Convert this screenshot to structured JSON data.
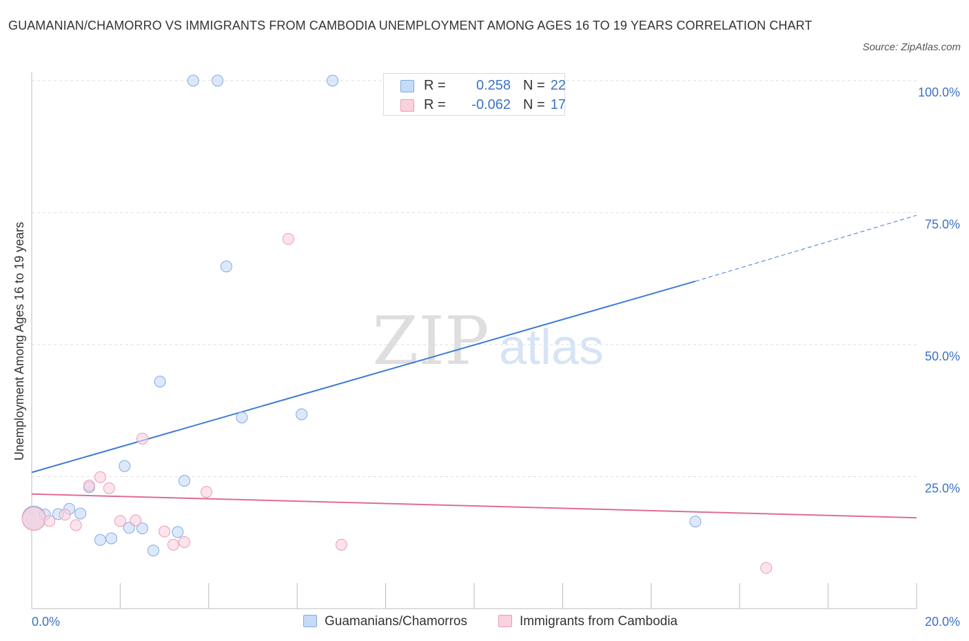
{
  "title": "GUAMANIAN/CHAMORRO VS IMMIGRANTS FROM CAMBODIA UNEMPLOYMENT AMONG AGES 16 TO 19 YEARS CORRELATION CHART",
  "source": "Source: ZipAtlas.com",
  "watermark": {
    "zip": "ZIP",
    "atlas": "atlas"
  },
  "legend_top": {
    "r_label": "R =",
    "n_label": "N =",
    "series1": {
      "r": "0.258",
      "n": "22"
    },
    "series2": {
      "r": "-0.062",
      "n": "17"
    }
  },
  "colors": {
    "series1_fill": "#c6dbf7",
    "series1_stroke": "#7fa9e6",
    "series1_line": "#3a7bd5",
    "series2_fill": "#f9d2de",
    "series2_stroke": "#ee9ab4",
    "series2_line": "#e06a95",
    "axis_text": "#3a72c8",
    "grid": "#dddddd"
  },
  "chart_data": {
    "type": "scatter",
    "title": "GUAMANIAN/CHAMORRO VS IMMIGRANTS FROM CAMBODIA UNEMPLOYMENT AMONG AGES 16 TO 19 YEARS CORRELATION CHART",
    "xlabel": "",
    "ylabel": "Unemployment Among Ages 16 to 19 years",
    "xlim": [
      0,
      20
    ],
    "ylim": [
      0,
      100
    ],
    "x_tick_labels": [
      "0.0%",
      "20.0%"
    ],
    "y_ticks": [
      25,
      50,
      75,
      100
    ],
    "y_tick_labels": [
      "25.0%",
      "50.0%",
      "75.0%",
      "100.0%"
    ],
    "grid": true,
    "series": [
      {
        "name": "Guamanians/Chamorros",
        "r": 0.258,
        "n": 22,
        "points": [
          {
            "x": 0.05,
            "y": 17.2,
            "big": true
          },
          {
            "x": 0.3,
            "y": 17.8
          },
          {
            "x": 0.6,
            "y": 17.9
          },
          {
            "x": 0.85,
            "y": 18.9
          },
          {
            "x": 1.1,
            "y": 18.0
          },
          {
            "x": 1.3,
            "y": 23.0
          },
          {
            "x": 1.55,
            "y": 13.0
          },
          {
            "x": 1.8,
            "y": 13.3
          },
          {
            "x": 2.1,
            "y": 27.0
          },
          {
            "x": 2.2,
            "y": 15.3
          },
          {
            "x": 2.5,
            "y": 15.2
          },
          {
            "x": 2.75,
            "y": 11.0
          },
          {
            "x": 2.9,
            "y": 43.0
          },
          {
            "x": 3.3,
            "y": 14.5
          },
          {
            "x": 3.45,
            "y": 24.2
          },
          {
            "x": 3.65,
            "y": 100.0
          },
          {
            "x": 4.2,
            "y": 100.0
          },
          {
            "x": 4.4,
            "y": 64.8
          },
          {
            "x": 4.75,
            "y": 36.2
          },
          {
            "x": 6.1,
            "y": 36.8
          },
          {
            "x": 6.8,
            "y": 100.0
          },
          {
            "x": 15.0,
            "y": 16.5
          }
        ],
        "trend": {
          "x0": 0,
          "y0": 25.8,
          "x1": 15.0,
          "y1": 62.0,
          "dashed_to_x": 20,
          "dashed_to_y": 74.5
        }
      },
      {
        "name": "Immigrants from Cambodia",
        "r": -0.062,
        "n": 17,
        "points": [
          {
            "x": 0.05,
            "y": 17.0,
            "big": true
          },
          {
            "x": 0.4,
            "y": 16.6
          },
          {
            "x": 0.75,
            "y": 17.8
          },
          {
            "x": 1.0,
            "y": 15.8
          },
          {
            "x": 1.3,
            "y": 23.3
          },
          {
            "x": 1.55,
            "y": 24.9
          },
          {
            "x": 1.75,
            "y": 22.8
          },
          {
            "x": 2.0,
            "y": 16.6
          },
          {
            "x": 2.35,
            "y": 16.7
          },
          {
            "x": 2.5,
            "y": 32.2
          },
          {
            "x": 3.0,
            "y": 14.6
          },
          {
            "x": 3.2,
            "y": 12.1
          },
          {
            "x": 3.45,
            "y": 12.6
          },
          {
            "x": 3.95,
            "y": 22.1
          },
          {
            "x": 5.8,
            "y": 70.0
          },
          {
            "x": 7.0,
            "y": 12.1
          },
          {
            "x": 16.6,
            "y": 7.7
          }
        ],
        "trend": {
          "x0": 0,
          "y0": 21.7,
          "x1": 20,
          "y1": 17.2
        }
      }
    ]
  },
  "legend_bottom": [
    "Guamanians/Chamorros",
    "Immigrants from Cambodia"
  ]
}
